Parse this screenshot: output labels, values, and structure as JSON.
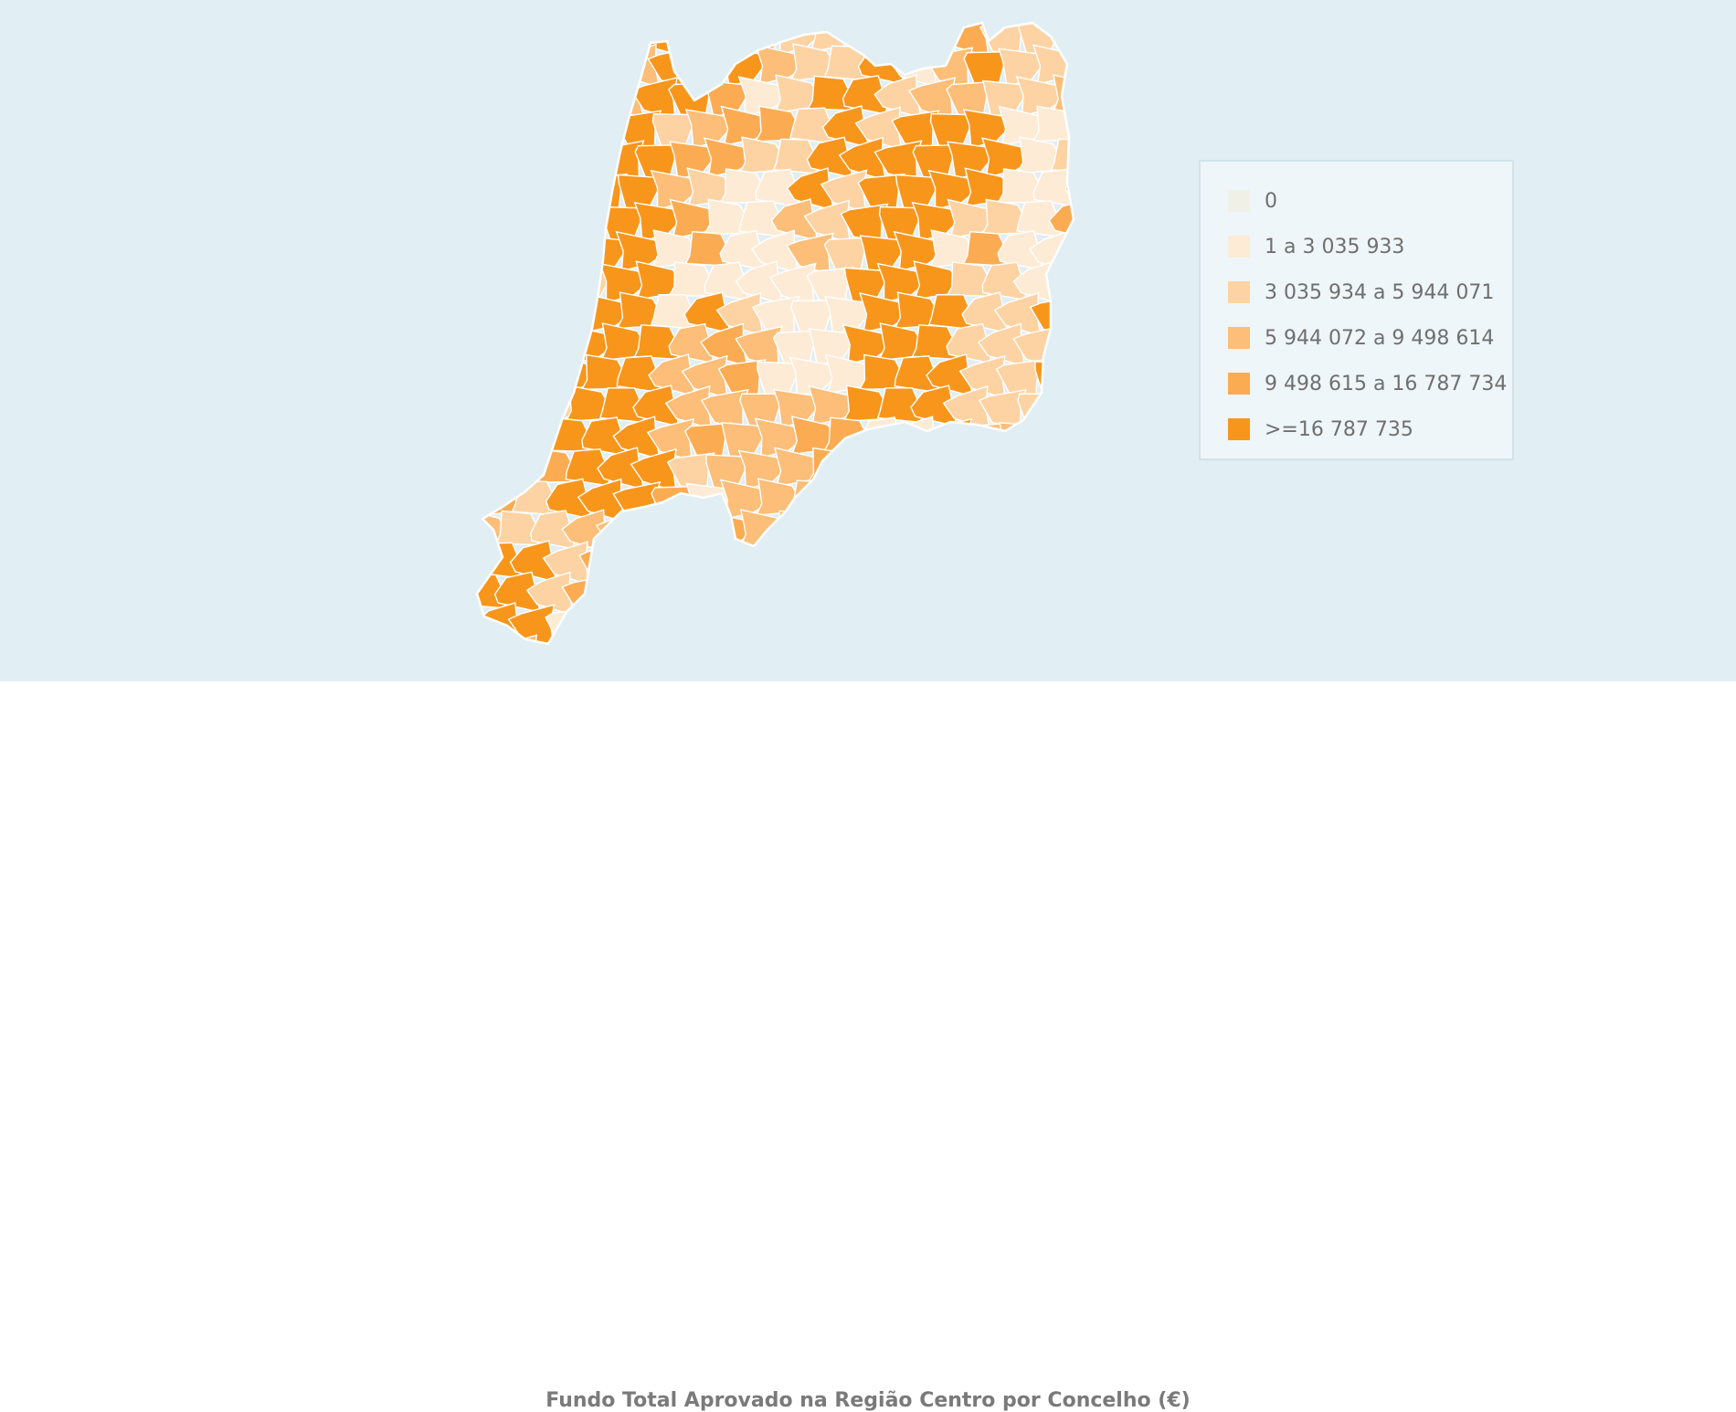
{
  "map": {
    "name": "Região Centro",
    "colors": {
      "background": "#e1eef4",
      "border": "#ffffff",
      "class_0": "#f1f0e6",
      "class_1": "#fdebd6",
      "class_2": "#fdd3a3",
      "class_3": "#fcbe78",
      "class_4": "#fbac52",
      "class_5": "#f8961c"
    }
  },
  "legend": {
    "items": [
      {
        "label": "0",
        "color": "#f1f0e6"
      },
      {
        "label": "1 a 3 035 933",
        "color": "#fdebd6"
      },
      {
        "label": "3 035 934 a 5 944 071",
        "color": "#fdd3a3"
      },
      {
        "label": "5 944 072 a 9 498 614",
        "color": "#fcbe78"
      },
      {
        "label": "9 498 615 a 16 787 734",
        "color": "#fbac52"
      },
      {
        "label": ">=16 787 735",
        "color": "#f8961c"
      }
    ]
  },
  "caption": "Fundo Total Aprovado na Região Centro por Concelho (€)"
}
